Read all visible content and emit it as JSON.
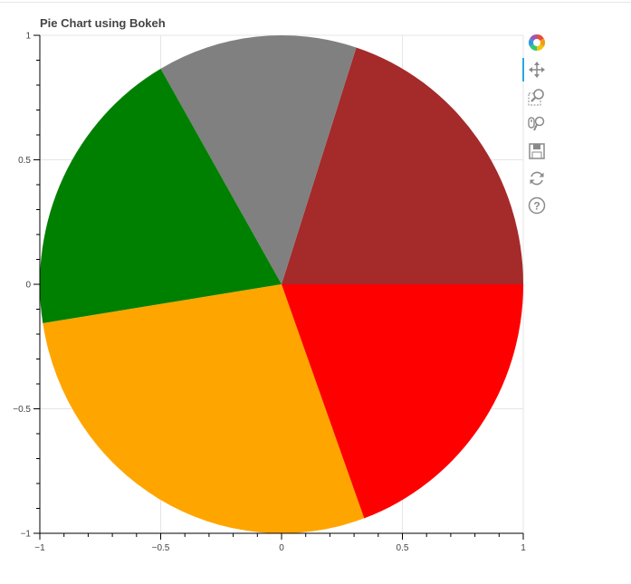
{
  "title": "Pie Chart using Bokeh",
  "toolbar": {
    "tools": [
      {
        "name": "bokeh-logo-icon",
        "active": false
      },
      {
        "name": "pan-icon",
        "active": true
      },
      {
        "name": "box-zoom-icon",
        "active": false
      },
      {
        "name": "wheel-zoom-icon",
        "active": false
      },
      {
        "name": "save-icon",
        "active": false
      },
      {
        "name": "reset-icon",
        "active": false
      },
      {
        "name": "help-icon",
        "active": false
      }
    ]
  },
  "chart_data": {
    "type": "pie",
    "title": "Pie Chart using Bokeh",
    "xlim": [
      -1,
      1
    ],
    "ylim": [
      -1,
      1
    ],
    "x_ticks": [
      "-1",
      "-0.5",
      "0",
      "0.5",
      "1"
    ],
    "y_ticks": [
      "1",
      "0.5",
      "0",
      "-0.5",
      "-1"
    ],
    "grid": true,
    "slices": [
      {
        "color": "#a52a2a",
        "start_deg": 0,
        "end_deg": 72
      },
      {
        "color": "#808080",
        "start_deg": 72,
        "end_deg": 120
      },
      {
        "color": "#008000",
        "start_deg": 120,
        "end_deg": 189
      },
      {
        "color": "#ffa500",
        "start_deg": 189,
        "end_deg": 290
      },
      {
        "color": "#ff0000",
        "start_deg": 290,
        "end_deg": 360
      }
    ]
  }
}
